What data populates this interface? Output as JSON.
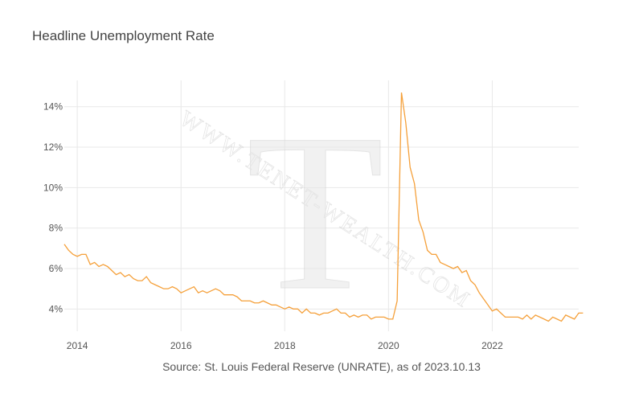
{
  "watermark": {
    "letter": "T",
    "text": "WWW.TENET-WEALTH.COM"
  },
  "chart_data": {
    "type": "line",
    "title": "Headline Unemployment Rate",
    "source": "Source: St. Louis Federal Reserve (UNRATE), as of 2023.10.13",
    "xlabel": "",
    "ylabel": "",
    "x_axis": {
      "type": "date",
      "range": [
        "2013-10",
        "2023-09"
      ],
      "ticks": [
        "2014",
        "2016",
        "2018",
        "2020",
        "2022"
      ]
    },
    "y_axis": {
      "range": [
        2.9,
        15.3
      ],
      "ticks": [
        4,
        6,
        8,
        10,
        12,
        14
      ],
      "tick_suffix": "%"
    },
    "grid": true,
    "color": "#f5a03a",
    "start": "2013-10",
    "frequency": "monthly",
    "values": [
      7.2,
      6.9,
      6.7,
      6.6,
      6.7,
      6.7,
      6.2,
      6.3,
      6.1,
      6.2,
      6.1,
      5.9,
      5.7,
      5.8,
      5.6,
      5.7,
      5.5,
      5.4,
      5.4,
      5.6,
      5.3,
      5.2,
      5.1,
      5.0,
      5.0,
      5.1,
      5.0,
      4.8,
      4.9,
      5.0,
      5.1,
      4.8,
      4.9,
      4.8,
      4.9,
      5.0,
      4.9,
      4.7,
      4.7,
      4.7,
      4.6,
      4.4,
      4.4,
      4.4,
      4.3,
      4.3,
      4.4,
      4.3,
      4.2,
      4.2,
      4.1,
      4.0,
      4.1,
      4.0,
      4.0,
      3.8,
      4.0,
      3.8,
      3.8,
      3.7,
      3.8,
      3.8,
      3.9,
      4.0,
      3.8,
      3.8,
      3.6,
      3.7,
      3.6,
      3.7,
      3.7,
      3.5,
      3.6,
      3.6,
      3.6,
      3.5,
      3.5,
      4.4,
      14.7,
      13.2,
      11.0,
      10.2,
      8.4,
      7.8,
      6.9,
      6.7,
      6.7,
      6.3,
      6.2,
      6.1,
      6.0,
      6.1,
      5.8,
      5.9,
      5.4,
      5.2,
      4.8,
      4.5,
      4.2,
      3.9,
      4.0,
      3.8,
      3.6,
      3.6,
      3.6,
      3.6,
      3.5,
      3.7,
      3.5,
      3.7,
      3.6,
      3.5,
      3.4,
      3.6,
      3.5,
      3.4,
      3.7,
      3.6,
      3.5,
      3.8,
      3.8
    ]
  }
}
